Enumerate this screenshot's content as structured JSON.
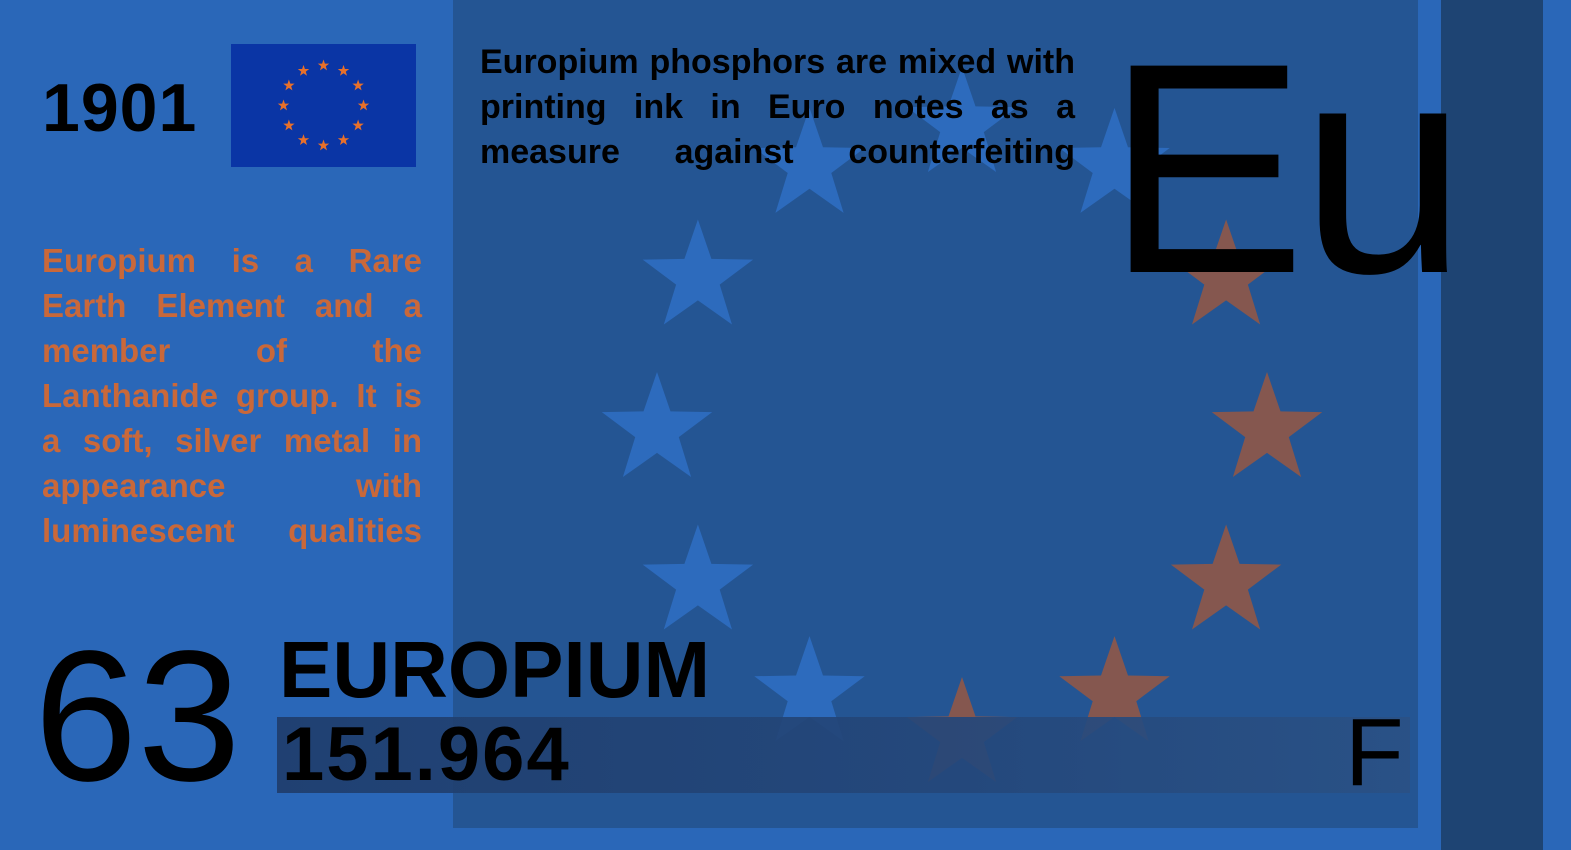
{
  "element": {
    "year": "1901",
    "symbol": "Eu",
    "atomic_number": "63",
    "name": "EUROPIUM",
    "atomic_mass": "151.964",
    "grade": "F"
  },
  "text": {
    "description": "Europium is a Rare Earth Element and a member of the Lanthanide group. It is a soft, silver metal in appearance with luminescent qualities",
    "fact": "Europium phosphors are mixed with printing ink in Euro notes as a measure against counterfeiting"
  },
  "flag": {
    "icon": "eu-flag-icon",
    "stars": 12
  },
  "colors": {
    "background": "#2a67b8",
    "panel": "#245593",
    "edge_stripe": "#1e4473",
    "description_text": "#c9683a",
    "flag_blue": "#0a35a5",
    "flag_star": "#e8702a",
    "watermark_star_blue": "#2d6bbd",
    "watermark_star_copper": "#85574f"
  }
}
